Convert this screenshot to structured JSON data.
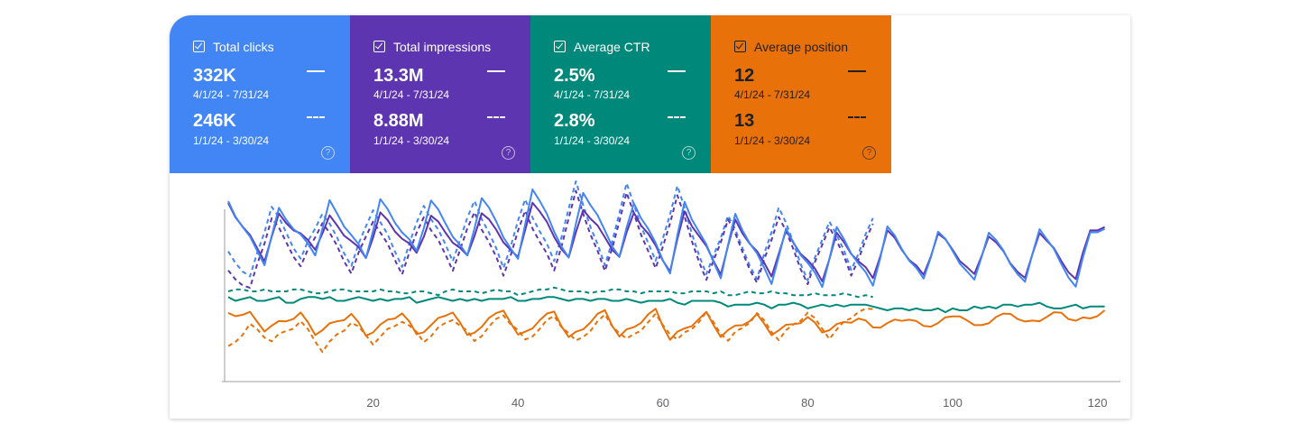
{
  "metrics": [
    {
      "id": "clicks",
      "label": "Total clicks",
      "checked": true,
      "current_value": "332K",
      "current_range": "4/1/24 - 7/31/24",
      "previous_value": "246K",
      "previous_range": "1/1/24 - 3/30/24",
      "color": "#4285f4",
      "help_icon": "question-circle-icon"
    },
    {
      "id": "impressions",
      "label": "Total impressions",
      "checked": true,
      "current_value": "13.3M",
      "current_range": "4/1/24 - 7/31/24",
      "previous_value": "8.88M",
      "previous_range": "1/1/24 - 3/30/24",
      "color": "#5e35b1",
      "help_icon": "question-circle-icon"
    },
    {
      "id": "ctr",
      "label": "Average CTR",
      "checked": true,
      "current_value": "2.5%",
      "current_range": "4/1/24 - 7/31/24",
      "previous_value": "2.8%",
      "previous_range": "1/1/24 - 3/30/24",
      "color": "#00897b",
      "help_icon": "question-circle-icon"
    },
    {
      "id": "position",
      "label": "Average position",
      "checked": true,
      "current_value": "12",
      "current_range": "4/1/24 - 7/31/24",
      "previous_value": "13",
      "previous_range": "1/1/24 - 3/30/24",
      "color": "#e8710a",
      "help_icon": "question-circle-icon"
    }
  ],
  "chart_data": {
    "type": "line",
    "x_ticks": [
      20,
      40,
      60,
      80,
      100,
      120
    ],
    "xlim": [
      0,
      123
    ],
    "ylim": [
      0,
      100
    ],
    "series": [
      {
        "name": "Total clicks (4/1/24 - 7/31/24)",
        "color": "#4285f4",
        "style": "solid",
        "length": 122,
        "peak_days": [
          0,
          7,
          14,
          21,
          28,
          35,
          42,
          49,
          56,
          63,
          70,
          77,
          84,
          91,
          98,
          105,
          112,
          119
        ],
        "trough_days": [
          5,
          12,
          19,
          26,
          33,
          40,
          47,
          54,
          61,
          68,
          75,
          82,
          89,
          96,
          103,
          110,
          117
        ],
        "peak_value": [
          87,
          83,
          87,
          88,
          88,
          90,
          95,
          93,
          87,
          87,
          80,
          72,
          73,
          74,
          72,
          72,
          74,
          72
        ],
        "trough_value": [
          55,
          60,
          58,
          61,
          58,
          56,
          57,
          58,
          50,
          48,
          45,
          43,
          43,
          46,
          45,
          44,
          42
        ]
      },
      {
        "name": "Total impressions (4/1/24 - 7/31/24)",
        "color": "#5e35b1",
        "style": "solid",
        "length": 122,
        "peak_days": [
          0,
          7,
          14,
          21,
          28,
          35,
          42,
          49,
          56,
          63,
          70,
          77,
          84,
          91,
          98,
          105,
          112,
          119
        ],
        "trough_days": [
          5,
          12,
          19,
          26,
          33,
          40,
          47,
          54,
          61,
          68,
          75,
          82,
          89,
          96,
          103,
          110,
          117
        ],
        "peak_value": [
          86,
          80,
          79,
          81,
          80,
          82,
          88,
          84,
          82,
          82,
          77,
          71,
          70,
          72,
          71,
          70,
          72,
          73
        ],
        "trough_value": [
          57,
          63,
          58,
          60,
          58,
          57,
          57,
          58,
          51,
          50,
          49,
          46,
          47,
          48,
          48,
          46,
          46
        ]
      },
      {
        "name": "Average CTR (4/1/24 - 7/31/24)",
        "color": "#00897b",
        "style": "solid",
        "length": 122,
        "values": [
          37,
          35,
          36,
          37,
          35,
          35,
          36,
          37,
          34,
          34,
          36,
          37,
          37,
          36,
          37,
          35,
          35,
          36,
          37,
          36,
          35,
          36,
          35,
          36,
          36,
          37,
          34,
          35,
          36,
          37,
          36,
          35,
          36,
          35,
          36,
          35,
          36,
          36,
          36,
          37,
          35,
          35,
          36,
          36,
          37,
          37,
          36,
          35,
          36,
          36,
          35,
          36,
          36,
          35,
          35,
          36,
          35,
          34,
          35,
          35,
          35,
          36,
          34,
          33,
          35,
          35,
          35,
          35,
          34,
          32,
          33,
          33,
          33,
          34,
          33,
          31,
          33,
          33,
          34,
          33,
          31,
          32,
          33,
          32,
          33,
          32,
          33,
          33,
          33,
          32,
          31,
          30,
          31,
          31,
          30,
          31,
          30,
          30,
          31,
          29,
          31,
          30,
          30,
          32,
          31,
          32,
          31,
          33,
          33,
          32,
          33,
          33,
          34,
          32,
          31,
          31,
          32,
          33,
          31,
          32,
          32,
          32
        ]
      },
      {
        "name": "Average position (4/1/24 - 7/31/24)",
        "color": "#e8710a",
        "style": "solid",
        "length": 122,
        "peak_days": [
          3,
          10,
          17,
          24,
          31,
          38,
          45,
          52,
          59,
          66,
          73,
          80,
          87,
          94,
          101,
          108,
          115,
          121
        ],
        "trough_days": [
          5,
          12,
          19,
          26,
          33,
          40,
          47,
          54,
          61,
          68,
          75,
          82,
          89,
          96,
          103,
          110,
          117
        ],
        "peak_value": [
          28,
          28,
          28,
          29,
          30,
          31,
          30,
          30,
          30,
          28,
          27,
          26,
          26,
          26,
          28,
          29,
          29,
          29
        ],
        "trough_value": [
          20,
          18,
          17,
          17,
          16,
          16,
          15,
          16,
          15,
          17,
          18,
          19,
          21,
          21,
          21,
          23,
          24
        ]
      },
      {
        "name": "Total clicks (1/1/24 - 3/30/24)",
        "color": "#4285f4",
        "style": "dashed",
        "length": 90,
        "peak_days": [
          0,
          6,
          13,
          20,
          27,
          34,
          41,
          48,
          55,
          62,
          69,
          76,
          83,
          89
        ],
        "trough_days": [
          3,
          10,
          17,
          24,
          31,
          38,
          45,
          52,
          59,
          66,
          73,
          80,
          86
        ],
        "peak_value": [
          60,
          85,
          82,
          84,
          86,
          88,
          88,
          97,
          96,
          95,
          80,
          85,
          78,
          78
        ],
        "trough_value": [
          47,
          57,
          54,
          54,
          57,
          53,
          56,
          53,
          55,
          48,
          46,
          46,
          52
        ]
      },
      {
        "name": "Total impressions (1/1/24 - 3/30/24)",
        "color": "#5e35b1",
        "style": "dashed",
        "length": 90,
        "peak_days": [
          0,
          6,
          13,
          20,
          27,
          34,
          41,
          48,
          55,
          62,
          69,
          76,
          83,
          89
        ],
        "trough_days": [
          3,
          10,
          17,
          24,
          31,
          38,
          45,
          52,
          59,
          66,
          73,
          80,
          86
        ],
        "peak_value": [
          50,
          79,
          77,
          78,
          80,
          82,
          82,
          92,
          91,
          90,
          78,
          80,
          75,
          75
        ],
        "trough_value": [
          41,
          53,
          50,
          50,
          52,
          49,
          51,
          50,
          51,
          45,
          44,
          44,
          49
        ]
      },
      {
        "name": "Average CTR (1/1/24 - 3/30/24)",
        "color": "#00897b",
        "style": "dashed",
        "length": 90,
        "values": [
          40,
          41,
          41,
          40,
          40,
          41,
          40,
          40,
          40,
          41,
          41,
          40,
          39,
          39,
          40,
          41,
          41,
          40,
          40,
          40,
          40,
          41,
          40,
          40,
          39,
          39,
          40,
          40,
          39,
          38,
          40,
          41,
          40,
          40,
          40,
          39,
          40,
          41,
          40,
          40,
          38,
          39,
          40,
          41,
          41,
          42,
          41,
          40,
          40,
          40,
          39,
          40,
          40,
          41,
          41,
          40,
          40,
          39,
          40,
          40,
          40,
          40,
          39,
          39,
          40,
          40,
          40,
          39,
          40,
          38,
          38,
          39,
          40,
          39,
          39,
          40,
          39,
          39,
          38,
          38,
          38,
          39,
          38,
          38,
          38,
          39,
          38,
          37,
          38,
          37
        ]
      },
      {
        "name": "Average position (1/1/24 - 3/30/24)",
        "color": "#e8710a",
        "style": "dashed",
        "length": 90,
        "peak_days": [
          3,
          10,
          17,
          24,
          31,
          38,
          45,
          52,
          59,
          66,
          73,
          80,
          87
        ],
        "trough_days": [
          0,
          6,
          13,
          20,
          27,
          34,
          41,
          48,
          55,
          62,
          69,
          76,
          83
        ],
        "peak_value": [
          22,
          24,
          24,
          25,
          26,
          28,
          27,
          27,
          27,
          28,
          28,
          29,
          30
        ],
        "trough_value": [
          10,
          14,
          9,
          13,
          14,
          14,
          14,
          13,
          14,
          14,
          14,
          15,
          16
        ]
      }
    ]
  }
}
